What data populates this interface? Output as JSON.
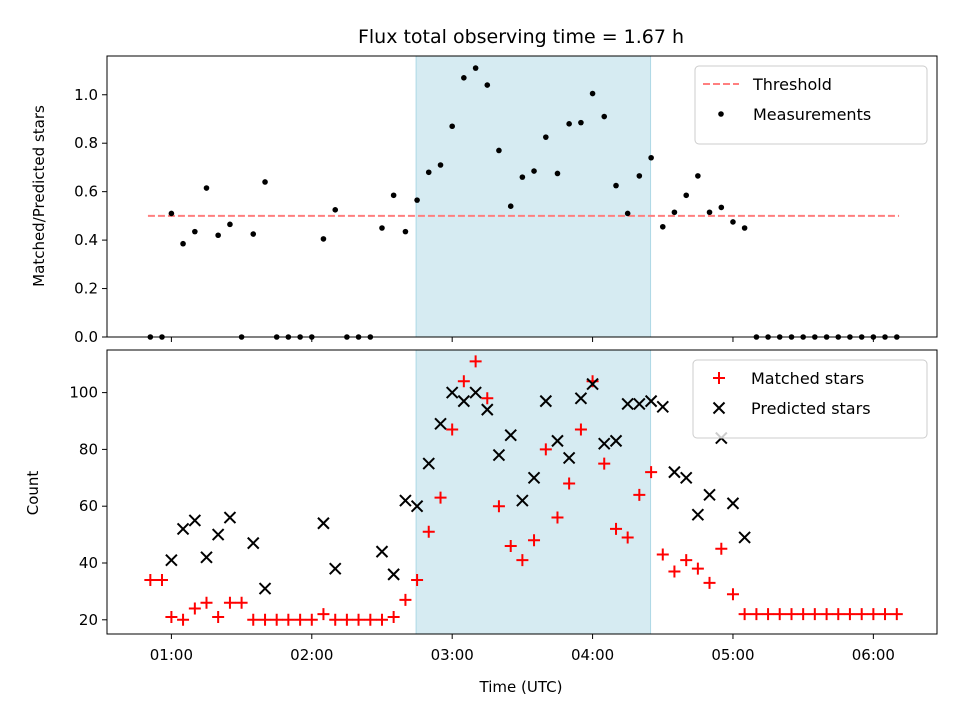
{
  "chart_data": {
    "title": "Flux total observing time = 1.67 h",
    "xlabel": "Time (UTC)",
    "x_ticks": [
      "01:00",
      "02:00",
      "03:00",
      "04:00",
      "05:00",
      "06:00"
    ],
    "shaded_span": {
      "x": [
        2.743,
        4.413
      ],
      "color": "#add8e6"
    },
    "panels": [
      {
        "type": "scatter",
        "ylabel": "Matched/Predicted stars",
        "ylim": [
          0,
          1.16
        ],
        "y_ticks": [
          0.0,
          0.2,
          0.4,
          0.6,
          0.8,
          1.0
        ],
        "grid": false,
        "legend_position": "top-right",
        "series": [
          {
            "name": "Threshold",
            "kind": "dashed-line",
            "color": "#ff7f7f",
            "x": [
              0.833,
              6.183
            ],
            "y": [
              0.5,
              0.5
            ]
          },
          {
            "name": "Measurements",
            "kind": "dot",
            "color": "#000000",
            "x": [
              0.85,
              0.933,
              1.0,
              1.083,
              1.167,
              1.25,
              1.333,
              1.417,
              1.5,
              1.583,
              1.667,
              1.75,
              1.833,
              1.917,
              2.0,
              2.083,
              2.167,
              2.25,
              2.333,
              2.417,
              2.5,
              2.583,
              2.667,
              2.75,
              2.833,
              2.917,
              3.0,
              3.083,
              3.167,
              3.25,
              3.333,
              3.417,
              3.5,
              3.583,
              3.667,
              3.75,
              3.833,
              3.917,
              4.0,
              4.083,
              4.167,
              4.25,
              4.333,
              4.417,
              4.5,
              4.583,
              4.667,
              4.75,
              4.833,
              4.917,
              5.0,
              5.083,
              5.167,
              5.25,
              5.333,
              5.417,
              5.5,
              5.583,
              5.667,
              5.75,
              5.833,
              5.917,
              6.0,
              6.083,
              6.167
            ],
            "y": [
              0.0,
              0.0,
              0.51,
              0.385,
              0.435,
              0.615,
              0.42,
              0.465,
              0.0,
              0.425,
              0.64,
              0.0,
              0.0,
              0.0,
              0.0,
              0.405,
              0.525,
              0.0,
              0.0,
              0.0,
              0.45,
              0.585,
              0.435,
              0.565,
              0.68,
              0.71,
              0.87,
              1.07,
              1.11,
              1.04,
              0.77,
              0.54,
              0.66,
              0.685,
              0.825,
              0.675,
              0.88,
              0.885,
              1.005,
              0.91,
              0.625,
              0.51,
              0.665,
              0.74,
              0.455,
              0.515,
              0.585,
              0.665,
              0.515,
              0.535,
              0.475,
              0.45,
              0.0,
              0.0,
              0.0,
              0.0,
              0.0,
              0.0,
              0.0,
              0.0,
              0.0,
              0.0,
              0.0,
              0.0,
              0.0
            ]
          }
        ]
      },
      {
        "type": "scatter",
        "ylabel": "Count",
        "ylim": [
          15,
          115
        ],
        "y_ticks": [
          20,
          40,
          60,
          80,
          100
        ],
        "grid": false,
        "legend_position": "top-right",
        "series": [
          {
            "name": "Matched stars",
            "kind": "plus",
            "color": "#ff0000",
            "x": [
              0.85,
              0.933,
              1.0,
              1.083,
              1.167,
              1.25,
              1.333,
              1.417,
              1.5,
              1.583,
              1.667,
              1.75,
              1.833,
              1.917,
              2.0,
              2.083,
              2.167,
              2.25,
              2.333,
              2.417,
              2.5,
              2.583,
              2.667,
              2.75,
              2.833,
              2.917,
              3.0,
              3.083,
              3.167,
              3.25,
              3.333,
              3.417,
              3.5,
              3.583,
              3.667,
              3.75,
              3.833,
              3.917,
              4.0,
              4.083,
              4.167,
              4.25,
              4.333,
              4.417,
              4.5,
              4.583,
              4.667,
              4.75,
              4.833,
              4.917,
              5.0,
              5.083,
              5.167,
              5.25,
              5.333,
              5.417,
              5.5,
              5.583,
              5.667,
              5.75,
              5.833,
              5.917,
              6.0,
              6.083,
              6.167
            ],
            "y": [
              34,
              34,
              21,
              20,
              24,
              26,
              21,
              26,
              26,
              20,
              20,
              20,
              20,
              20,
              20,
              22,
              20,
              20,
              20,
              20,
              20,
              21,
              27,
              34,
              51,
              63,
              87,
              104,
              111,
              98,
              60,
              46,
              41,
              48,
              80,
              56,
              68,
              87,
              104,
              75,
              52,
              49,
              64,
              72,
              43,
              37,
              41,
              38,
              33,
              45,
              29,
              22,
              22,
              22,
              22,
              22,
              22,
              22,
              22,
              22,
              22,
              22,
              22,
              22,
              22
            ]
          },
          {
            "name": "Predicted stars",
            "kind": "x",
            "color": "#000000",
            "x": [
              1.0,
              1.083,
              1.167,
              1.25,
              1.333,
              1.417,
              1.583,
              1.667,
              2.083,
              2.167,
              2.5,
              2.583,
              2.667,
              2.75,
              2.833,
              2.917,
              3.0,
              3.083,
              3.167,
              3.25,
              3.333,
              3.417,
              3.5,
              3.583,
              3.667,
              3.75,
              3.833,
              3.917,
              4.0,
              4.083,
              4.167,
              4.25,
              4.333,
              4.417,
              4.5,
              4.583,
              4.667,
              4.75,
              4.833,
              4.917,
              5.0,
              5.083
            ],
            "y": [
              41,
              52,
              55,
              42,
              50,
              56,
              47,
              31,
              54,
              38,
              44,
              36,
              62,
              60,
              75,
              89,
              100,
              97,
              100,
              94,
              78,
              85,
              62,
              70,
              97,
              83,
              77,
              98,
              103,
              82,
              83,
              96,
              96,
              97,
              95,
              72,
              70,
              57,
              64,
              84,
              61,
              49
            ]
          }
        ]
      }
    ]
  }
}
